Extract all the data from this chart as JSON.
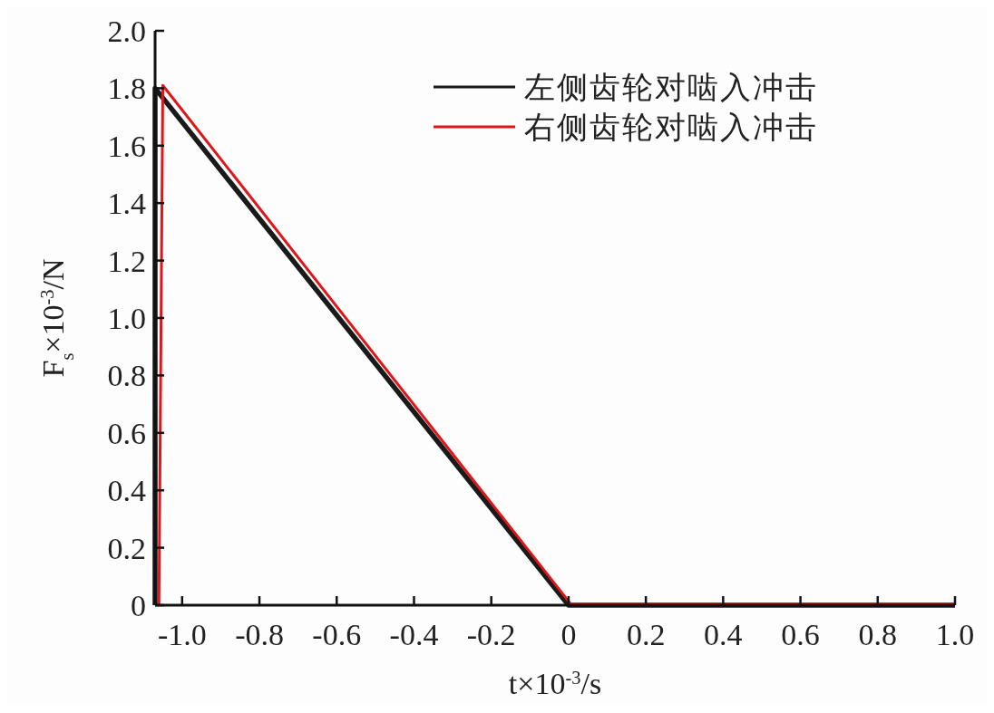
{
  "chart_data": {
    "type": "line",
    "xlabel": "t×10$^{-3}$/s",
    "ylabel": "F$_{s}$×10$^{-3}$/N",
    "xlim": [
      -1.07,
      1.0
    ],
    "ylim": [
      0,
      2.0
    ],
    "xticks": [
      {
        "value": -1,
        "label": "-1.0"
      },
      {
        "value": -0.8,
        "label": "-0.8"
      },
      {
        "value": -0.6,
        "label": "-0.6"
      },
      {
        "value": -0.4,
        "label": "-0.4"
      },
      {
        "value": -0.2,
        "label": "-0.2"
      },
      0,
      {
        "value": 0.2,
        "label": "0.2"
      },
      {
        "value": 0.4,
        "label": "0.4"
      },
      {
        "value": 0.6,
        "label": "0.6"
      },
      {
        "value": 0.8,
        "label": "0.8"
      },
      {
        "value": 1,
        "label": "1.0"
      }
    ],
    "yticks": [
      0,
      {
        "value": 0.2,
        "label": "0.2"
      },
      {
        "value": 0.4,
        "label": "0.4"
      },
      {
        "value": 0.6,
        "label": "0.6"
      },
      {
        "value": 0.8,
        "label": "0.8"
      },
      {
        "value": 1,
        "label": "1.0"
      },
      {
        "value": 1.2,
        "label": "1.2"
      },
      {
        "value": 1.4,
        "label": "1.4"
      },
      {
        "value": 1.6,
        "label": "1.6"
      },
      {
        "value": 1.8,
        "label": "1.8"
      },
      {
        "value": 2,
        "label": "2.0"
      }
    ],
    "legend": "top right",
    "grid": false,
    "marker": "none",
    "line_style": "solid",
    "series": [
      {
        "name": "左侧齿轮对啮入冲击",
        "color": "#1a1a1a",
        "x": [
          -1.07,
          -1.07,
          0,
          1.0
        ],
        "values": [
          0,
          1.8,
          0,
          0
        ]
      },
      {
        "name": "右侧齿轮对啮入冲击",
        "color": "#e0161b",
        "x": [
          -1.06,
          -1.05,
          0.005,
          1.0
        ],
        "values": [
          0,
          1.81,
          0.005,
          0.005
        ]
      }
    ]
  }
}
